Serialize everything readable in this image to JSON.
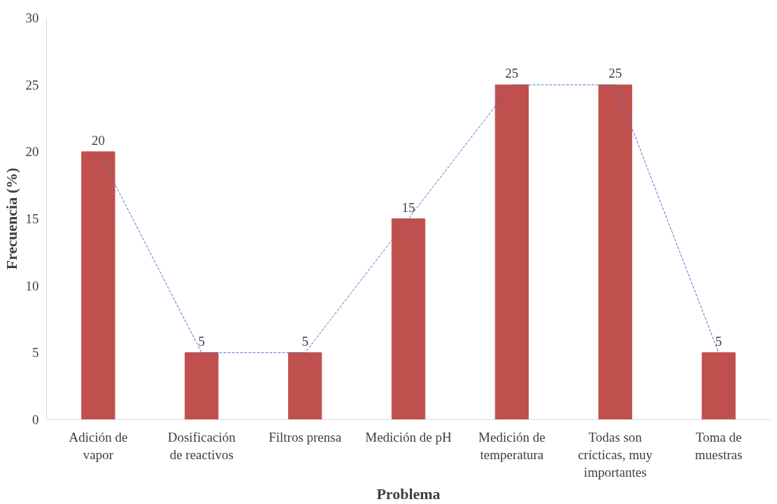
{
  "chart_data": {
    "type": "bar",
    "xlabel": "Problema",
    "ylabel": "Frecuencia (%)",
    "categories": [
      "Adición de vapor",
      "Dosificación de reactivos",
      "Filtros prensa",
      "Medición de pH",
      "Medición de temperatura",
      "Todas son crícticas, muy importantes",
      "Toma de muestras"
    ],
    "series": [
      {
        "color": "#c0504d",
        "values": [
          20,
          5,
          5,
          15,
          25,
          25,
          5
        ],
        "value_labels": [
          "20",
          "5",
          "5",
          "15",
          "25",
          "25",
          "5"
        ]
      },
      {
        "type": "line",
        "color": "#4472c4",
        "line_style": "dashed",
        "values": [
          20,
          5,
          5,
          15,
          25,
          25,
          5
        ]
      }
    ],
    "ylim": [
      0,
      30
    ],
    "yticks": [
      0,
      5,
      10,
      15,
      20,
      25,
      30
    ],
    "grid": false
  }
}
